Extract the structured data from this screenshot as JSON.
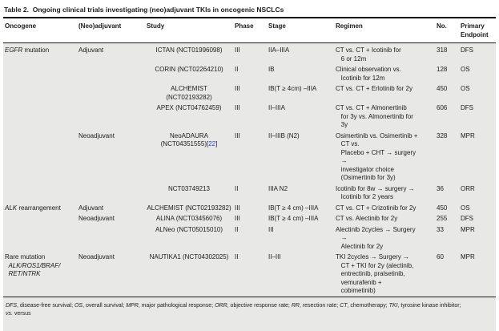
{
  "title": "Table 2.  Ongoing clinical trials investigating (neo)adjuvant TKIs in oncogenic NSCLCs",
  "colors": {
    "body_background": "#e8e8e6",
    "citation_blue": "#2440e8",
    "rule_black": "#1a1a1a"
  },
  "table": {
    "headers": {
      "oncogene": "Oncogene",
      "adjuvant": "(Neo)adjuvant",
      "study": "Study",
      "phase": "Phase",
      "stage": "Stage",
      "regimen": "Regimen",
      "no": "No.",
      "endpoint": "Primary\nEndpoint"
    },
    "rows": [
      {
        "onc_pre": "",
        "onc_em": "EGFR",
        "onc_post": " mutation",
        "adjuvant": "Adjuvant",
        "study": "ICTAN (NCT01996098)",
        "phase": "III",
        "stage": "IIA–IIIA",
        "regimen": "CT vs. CT + Icotinib for\n   6 or 12m",
        "no": "318",
        "endpoint": "DFS"
      },
      {
        "study": "CORIN (NCT02264210)",
        "phase": "II",
        "stage": "IB",
        "regimen": "Clinical observation vs.\n   Icotinib for 12m",
        "no": "128",
        "endpoint": "OS"
      },
      {
        "study": "ALCHEMIST\n(NCT02193282)",
        "phase": "III",
        "stage": "IB(T ≥ 4cm) –IIIA",
        "regimen": "CT vs. CT + Erlotinib for 2y",
        "no": "450",
        "endpoint": "OS"
      },
      {
        "study": "APEX (NCT04762459)",
        "phase": "III",
        "stage": "II–IIIA",
        "regimen": "CT vs. CT + Almonertinib\n   for 3y vs. Almonertinib for\n   3y",
        "no": "606",
        "endpoint": "DFS"
      },
      {
        "adjuvant": "Neoadjuvant",
        "study": "NeoADAURA\n(NCT04351555)",
        "cite_l": "[",
        "cite_n": "22",
        "cite_r": "]",
        "phase": "III",
        "stage": "II–IIIB (N2)",
        "regimen": "Osimertinib vs. Osimertinib +\n   CT vs.\n   Placebo + CHT → surgery\n   →\n   investigator choice\n   (Osimertinib for 3y)",
        "no": "328",
        "endpoint": "MPR"
      },
      {
        "study": "NCT03749213",
        "phase": "II",
        "stage": "IIIA N2",
        "regimen": "Icotinib for 8w → surgery →\n   Icotinib for 2 years",
        "no": "36",
        "endpoint": "ORR"
      },
      {
        "onc_pre": "",
        "onc_em": "ALK",
        "onc_post": " rearrangement",
        "adjuvant": "Adjuvant",
        "study": "ALCHEMIST (NCT02193282)",
        "phase": "III",
        "stage": "IB(T ≥ 4 cm) –IIIA",
        "regimen": "CT vs. CT + Crizotinib for 2y",
        "no": "450",
        "endpoint": "OS"
      },
      {
        "adjuvant": "Neoadjuvant",
        "study": "ALINA (NCT03456076)",
        "phase": "III",
        "stage": "IB(T ≥ 4 cm) –IIIA",
        "regimen": "CT vs. Alectinib for 2y",
        "no": "255",
        "endpoint": "DFS"
      },
      {
        "study": "ALNeo (NCT05015010)",
        "phase": "II",
        "stage": "III",
        "regimen": "Alectinib 2cycles → Surgery\n   →\n   Alectinib for 2y",
        "no": "33",
        "endpoint": "MPR"
      },
      {
        "onc_pre": "Rare mutation\n",
        "onc_em": "  ALK/ROS1/BRAF/\n  RET/NTRK",
        "onc_post": "",
        "adjuvant": "Neoadjuvant",
        "study": "NAUTIKA1 (NCT04302025)",
        "phase": "II",
        "stage": "II–III",
        "regimen": "TKI 2cycles → Surgery →\n   CT + TKI for 2y (alectinib,\n   entrectinib, pralsetinib,\n   vemurafenib +\n   cobimetinib)",
        "no": "60",
        "endpoint": "MPR"
      }
    ]
  },
  "footnote": {
    "segments": [
      {
        "t": "DFS",
        "i": true
      },
      {
        "t": ", disease-free survival; "
      },
      {
        "t": "OS",
        "i": true
      },
      {
        "t": ", overall survival; "
      },
      {
        "t": "MPR",
        "i": true
      },
      {
        "t": ", major pathological response; "
      },
      {
        "t": "ORR",
        "i": true
      },
      {
        "t": ", objective response rate; "
      },
      {
        "t": "RR",
        "i": true
      },
      {
        "t": ", resection rate; "
      },
      {
        "t": "CT",
        "i": true
      },
      {
        "t": ", chemotherapy; "
      },
      {
        "t": "TKI",
        "i": true
      },
      {
        "t": ", tyrosine kinase inhibitor;"
      },
      {
        "t": "\n"
      },
      {
        "t": "vs.",
        "i": true
      },
      {
        "t": " versus"
      }
    ]
  }
}
